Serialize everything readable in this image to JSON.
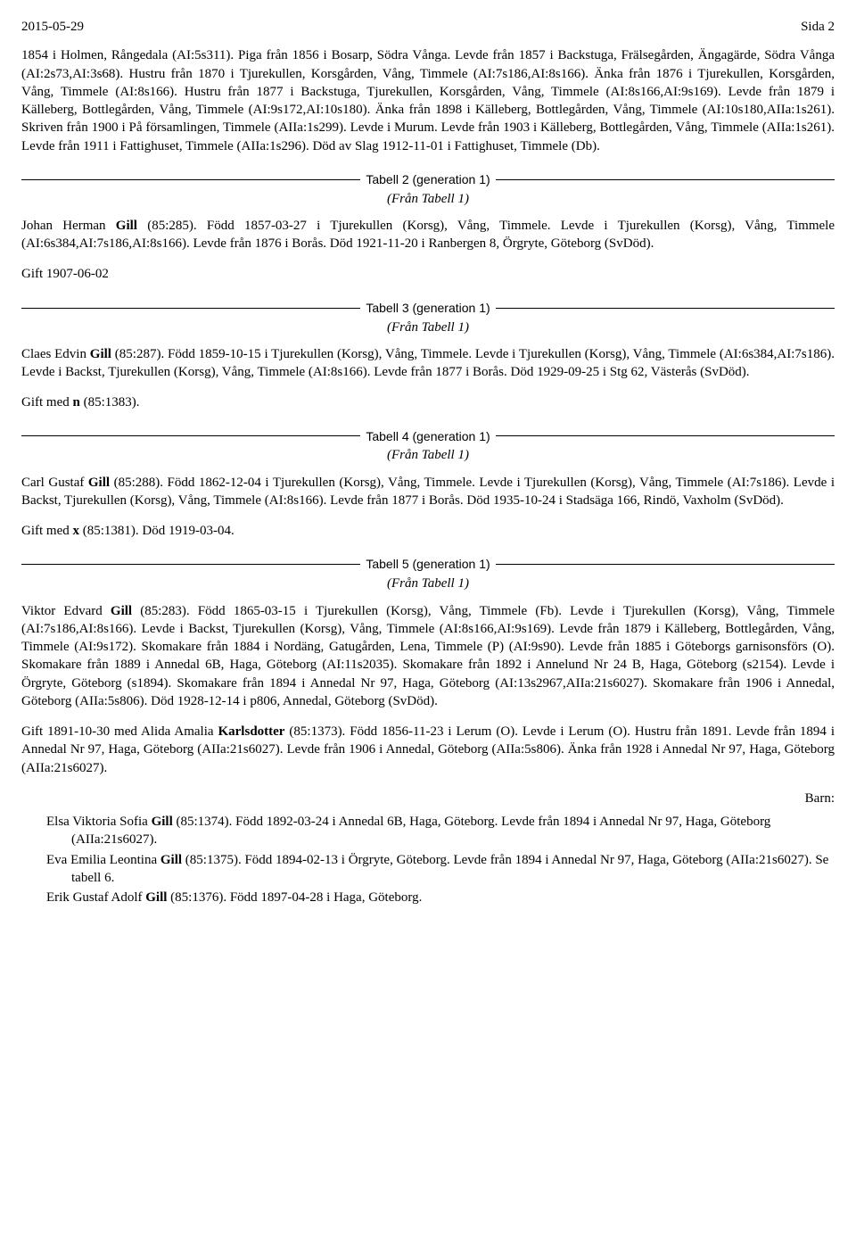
{
  "header": {
    "date": "2015-05-29",
    "page": "Sida 2"
  },
  "intro": {
    "text": "1854 i Holmen, Rångedala (AI:5s311). Piga från 1856 i Bosarp, Södra Vånga. Levde från 1857 i Backstuga, Frälsegården, Ängagärde, Södra Vånga (AI:2s73,AI:3s68). Hustru från 1870 i Tjurekullen, Korsgården, Vång, Timmele (AI:7s186,AI:8s166). Änka från 1876 i Tjurekullen, Korsgården, Vång, Timmele (AI:8s166). Hustru från 1877 i Backstuga, Tjurekullen, Korsgården, Vång, Timmele (AI:8s166,AI:9s169). Levde från 1879 i Källeberg, Bottlegården, Vång, Timmele (AI:9s172,AI:10s180). Änka från 1898 i Källeberg, Bottlegården, Vång, Timmele (AI:10s180,AIIa:1s261). Skriven från 1900 i På församlingen, Timmele (AIIa:1s299). Levde i Murum. Levde från 1903 i Källeberg, Bottlegården, Vång, Timmele (AIIa:1s261). Levde från 1911 i Fattighuset, Timmele (AIIa:1s296). Död av Slag 1912-11-01 i Fattighuset, Timmele (Db)."
  },
  "tabell2": {
    "title": "Tabell 2 (generation 1)",
    "from": "(Från Tabell 1)",
    "p1a": "Johan Herman ",
    "p1b": "Gill",
    "p1c": " (85:285). Född 1857-03-27 i Tjurekullen (Korsg), Vång, Timmele. Levde i Tjurekullen (Korsg), Vång, Timmele (AI:6s384,AI:7s186,AI:8s166). Levde från 1876 i Borås. Död 1921-11-20 i Ranbergen 8, Örgryte, Göteborg (SvDöd).",
    "p2": "Gift 1907-06-02"
  },
  "tabell3": {
    "title": "Tabell 3 (generation 1)",
    "from": "(Från Tabell 1)",
    "p1a": "Claes Edvin ",
    "p1b": "Gill",
    "p1c": " (85:287). Född 1859-10-15 i Tjurekullen (Korsg), Vång, Timmele. Levde i Tjurekullen (Korsg), Vång, Timmele (AI:6s384,AI:7s186). Levde i Backst, Tjurekullen (Korsg), Vång, Timmele (AI:8s166). Levde från 1877 i Borås. Död 1929-09-25 i Stg 62, Västerås (SvDöd).",
    "p2a": "Gift med ",
    "p2b": "n",
    "p2c": " (85:1383)."
  },
  "tabell4": {
    "title": "Tabell 4 (generation 1)",
    "from": "(Från Tabell 1)",
    "p1a": "Carl Gustaf ",
    "p1b": "Gill",
    "p1c": " (85:288). Född 1862-12-04 i Tjurekullen (Korsg), Vång, Timmele. Levde i Tjurekullen (Korsg), Vång, Timmele (AI:7s186). Levde i Backst, Tjurekullen (Korsg), Vång, Timmele (AI:8s166). Levde från 1877 i Borås. Död 1935-10-24 i Stadsäga 166, Rindö, Vaxholm (SvDöd).",
    "p2a": "Gift med ",
    "p2b": "x",
    "p2c": " (85:1381). Död 1919-03-04."
  },
  "tabell5": {
    "title": "Tabell 5 (generation 1)",
    "from": "(Från Tabell 1)",
    "p1a": "Viktor Edvard ",
    "p1b": "Gill",
    "p1c": " (85:283). Född 1865-03-15 i Tjurekullen (Korsg), Vång, Timmele (Fb). Levde i Tjurekullen (Korsg), Vång, Timmele (AI:7s186,AI:8s166). Levde i Backst, Tjurekullen (Korsg), Vång, Timmele (AI:8s166,AI:9s169). Levde från 1879 i Källeberg, Bottlegården, Vång, Timmele (AI:9s172). Skomakare från 1884 i Nordäng, Gatugården, Lena, Timmele (P) (AI:9s90). Levde från 1885 i Göteborgs garnisonsförs (O). Skomakare från 1889 i Annedal 6B, Haga, Göteborg (AI:11s2035). Skomakare från 1892 i Annelund Nr 24 B, Haga, Göteborg (s2154). Levde i Örgryte, Göteborg (s1894). Skomakare från 1894 i Annedal Nr 97, Haga, Göteborg (AI:13s2967,AIIa:21s6027). Skomakare från 1906 i Annedal, Göteborg (AIIa:5s806). Död 1928-12-14 i p806, Annedal, Göteborg (SvDöd).",
    "p2a": "Gift 1891-10-30 med Alida Amalia ",
    "p2b": "Karlsdotter",
    "p2c": " (85:1373). Född 1856-11-23 i Lerum (O). Levde i Lerum (O). Hustru från 1891. Levde från 1894 i Annedal Nr 97, Haga, Göteborg (AIIa:21s6027). Levde från 1906 i Annedal, Göteborg (AIIa:5s806). Änka från 1928 i Annedal Nr 97, Haga, Göteborg (AIIa:21s6027).",
    "barn_label": "Barn:",
    "children": [
      {
        "a": "Elsa Viktoria Sofia ",
        "b": "Gill",
        "c": " (85:1374). Född 1892-03-24 i Annedal 6B, Haga, Göteborg. Levde från 1894 i Annedal Nr 97, Haga, Göteborg (AIIa:21s6027)."
      },
      {
        "a": "Eva Emilia Leontina ",
        "b": "Gill",
        "c": " (85:1375). Född 1894-02-13 i Örgryte, Göteborg. Levde från 1894 i Annedal Nr 97, Haga, Göteborg (AIIa:21s6027). Se tabell 6."
      },
      {
        "a": "Erik Gustaf Adolf ",
        "b": "Gill",
        "c": " (85:1376). Född 1897-04-28 i Haga, Göteborg."
      }
    ]
  }
}
